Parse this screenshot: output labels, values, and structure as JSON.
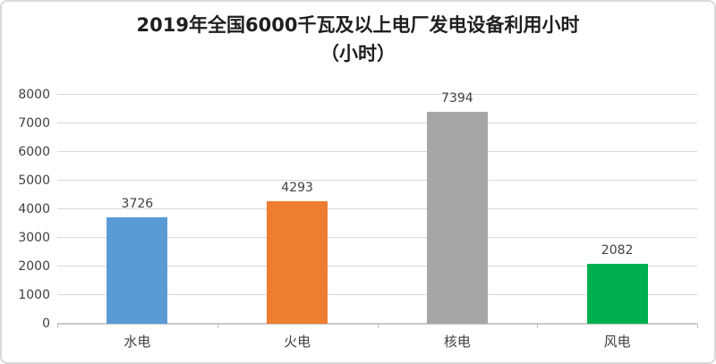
{
  "chart": {
    "title_line1": "2019年全国6000千瓦及以上电厂发电设备利用小时",
    "title_line2": "（小时）"
  },
  "chart_data": {
    "type": "bar",
    "title": "2019年全国6000千瓦及以上电厂发电设备利用小时（小时）",
    "categories": [
      "水电",
      "火电",
      "核电",
      "风电"
    ],
    "values": [
      3726,
      4293,
      7394,
      2082
    ],
    "data_labels": [
      "3726",
      "4293",
      "7394",
      "2082"
    ],
    "bar_colors": [
      "#5B9BD5",
      "#ED7D31",
      "#A6A6A6",
      "#00AF50"
    ],
    "ylim": [
      0,
      8000
    ],
    "ytick_step": 1000,
    "ytick_labels": [
      "0",
      "1000",
      "2000",
      "3000",
      "4000",
      "5000",
      "6000",
      "7000",
      "8000"
    ],
    "xlabel": "",
    "ylabel": "",
    "grid": true,
    "legend": false,
    "colors": {
      "gridline": "#D9D9D9",
      "axis_line": "#C9C9C9",
      "tick": "#BFBFBF",
      "axis_text": "#404040",
      "value_label_text": "#404040",
      "title_text": "#1F1F1F",
      "frame_border": "#D9D9D9",
      "background": "#FFFFFF"
    }
  }
}
